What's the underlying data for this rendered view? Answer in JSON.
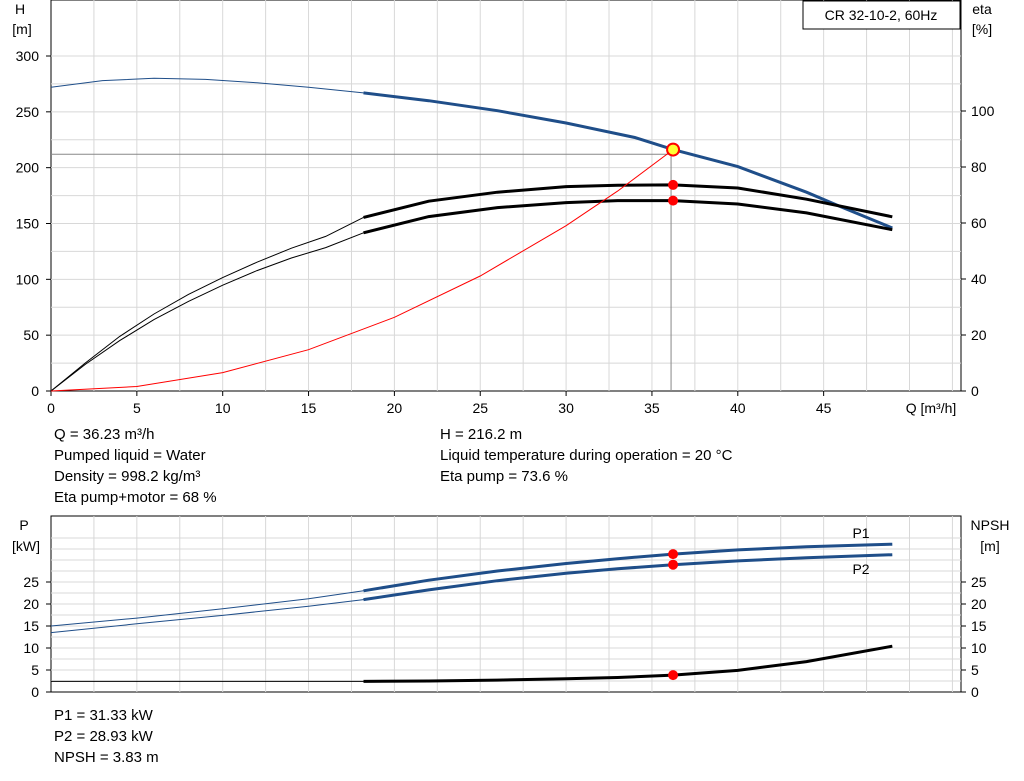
{
  "chart_data": [
    {
      "type": "line",
      "label_box": "CR 32-10-2, 60Hz",
      "x_axis": {
        "label": "Q [m³/h]",
        "range": [
          0,
          53
        ],
        "ticks": [
          0,
          5,
          10,
          15,
          20,
          25,
          30,
          35,
          40,
          45
        ]
      },
      "y_left": {
        "label_top": "H",
        "label_unit": "[m]",
        "range": [
          0,
          300
        ],
        "ticks": [
          0,
          50,
          100,
          150,
          200,
          250,
          300
        ]
      },
      "y_right": {
        "label_top": "eta",
        "label_unit": "[%]",
        "range": [
          0,
          120
        ],
        "ticks": [
          0,
          20,
          40,
          60,
          80,
          100
        ]
      },
      "grid": true,
      "operating_point": {
        "q": 36.23,
        "h": 216.2,
        "eta_pump": 73.6,
        "eta_total": 68
      },
      "series": [
        {
          "axis": "left",
          "color": "#1f4e89",
          "thin_end_q": 18.2,
          "points": [
            [
              0,
              272
            ],
            [
              3,
              278
            ],
            [
              6,
              280
            ],
            [
              9,
              279
            ],
            [
              12,
              276
            ],
            [
              15,
              272
            ],
            [
              18.2,
              267
            ],
            [
              22,
              260
            ],
            [
              26,
              251
            ],
            [
              30,
              240
            ],
            [
              34,
              227
            ],
            [
              36.23,
              216.2
            ],
            [
              40,
              201
            ],
            [
              44,
              178
            ],
            [
              46,
              165
            ],
            [
              49,
              146
            ]
          ]
        },
        {
          "axis": "right",
          "color": "#000000",
          "thin_end_q": 18.2,
          "points": [
            [
              0,
              0
            ],
            [
              2,
              10
            ],
            [
              4,
              19.5
            ],
            [
              6,
              27.5
            ],
            [
              8,
              34.5
            ],
            [
              10,
              40.5
            ],
            [
              12,
              46
            ],
            [
              14,
              51
            ],
            [
              16,
              55.2
            ],
            [
              18.2,
              62
            ],
            [
              22,
              67.8
            ],
            [
              26,
              71
            ],
            [
              30,
              73
            ],
            [
              33,
              73.5
            ],
            [
              36.23,
              73.6
            ],
            [
              40,
              72.5
            ],
            [
              44,
              68.5
            ],
            [
              49,
              62.2
            ]
          ]
        },
        {
          "axis": "right",
          "color": "#000000",
          "thin_end_q": 18.2,
          "points": [
            [
              0,
              0
            ],
            [
              2,
              9.5
            ],
            [
              4,
              18
            ],
            [
              6,
              25.5
            ],
            [
              8,
              32
            ],
            [
              10,
              37.8
            ],
            [
              12,
              43
            ],
            [
              14,
              47.5
            ],
            [
              16,
              51.2
            ],
            [
              18.2,
              56.5
            ],
            [
              22,
              62.3
            ],
            [
              26,
              65.5
            ],
            [
              30,
              67.3
            ],
            [
              33,
              68
            ],
            [
              36.23,
              68
            ],
            [
              40,
              66.8
            ],
            [
              44,
              63.6
            ],
            [
              49,
              57.6
            ]
          ]
        },
        {
          "axis": "left",
          "color": "#ff0000",
          "thin_end_q": 49,
          "points": [
            [
              0,
              0
            ],
            [
              5,
              4
            ],
            [
              10,
              16.5
            ],
            [
              15,
              37
            ],
            [
              20,
              66
            ],
            [
              25,
              103
            ],
            [
              30,
              148
            ],
            [
              33,
              179
            ],
            [
              36.23,
              216.2
            ]
          ]
        }
      ],
      "reference_line": {
        "h": 212,
        "q_max": 36.23
      }
    },
    {
      "type": "line",
      "x_axis": {
        "range": [
          0,
          53
        ]
      },
      "y_left": {
        "label_top": "P",
        "label_unit": "[kW]",
        "range": [
          0,
          35
        ],
        "ticks": [
          0,
          5,
          10,
          15,
          20,
          25
        ]
      },
      "y_right": {
        "label_top": "NPSH",
        "label_unit": "[m]",
        "range": [
          0,
          35
        ],
        "ticks": [
          0,
          5,
          10,
          15,
          20,
          25
        ]
      },
      "grid": true,
      "series": [
        {
          "name": "P1",
          "axis": "left",
          "color": "#1f4e89",
          "thin_end_q": 18.2,
          "points": [
            [
              0,
              15
            ],
            [
              5,
              16.8
            ],
            [
              10,
              18.9
            ],
            [
              15,
              21.2
            ],
            [
              18.2,
              23
            ],
            [
              22,
              25.4
            ],
            [
              26,
              27.5
            ],
            [
              30,
              29.2
            ],
            [
              33,
              30.3
            ],
            [
              36.23,
              31.33
            ],
            [
              40,
              32.3
            ],
            [
              44,
              33
            ],
            [
              49,
              33.6
            ]
          ]
        },
        {
          "name": "P2",
          "axis": "left",
          "color": "#1f4e89",
          "thin_end_q": 18.2,
          "points": [
            [
              0,
              13.5
            ],
            [
              5,
              15.5
            ],
            [
              10,
              17.4
            ],
            [
              15,
              19.5
            ],
            [
              18.2,
              21
            ],
            [
              22,
              23.2
            ],
            [
              26,
              25.3
            ],
            [
              30,
              27
            ],
            [
              33,
              28
            ],
            [
              36.23,
              28.93
            ],
            [
              40,
              29.8
            ],
            [
              44,
              30.5
            ],
            [
              49,
              31.2
            ]
          ]
        },
        {
          "axis": "right",
          "color": "#000000",
          "thin_end_q": 18.2,
          "points": [
            [
              0,
              2.4
            ],
            [
              18.2,
              2.4
            ],
            [
              22,
              2.5
            ],
            [
              26,
              2.7
            ],
            [
              30,
              3
            ],
            [
              33,
              3.3
            ],
            [
              36.23,
              3.83
            ],
            [
              40,
              4.9
            ],
            [
              44,
              6.9
            ],
            [
              49,
              10.4
            ]
          ]
        }
      ]
    }
  ],
  "info_top_left": [
    "Q = 36.23 m³/h",
    "Pumped liquid = Water",
    "Density = 998.2 kg/m³",
    "Eta pump+motor = 68 %"
  ],
  "info_top_right": [
    "H = 216.2 m",
    "Liquid temperature during operation = 20 °C",
    "Eta pump = 73.6 %"
  ],
  "info_bottom": [
    "P1 = 31.33 kW",
    "P2 = 28.93 kW",
    "NPSH = 3.83 m"
  ]
}
